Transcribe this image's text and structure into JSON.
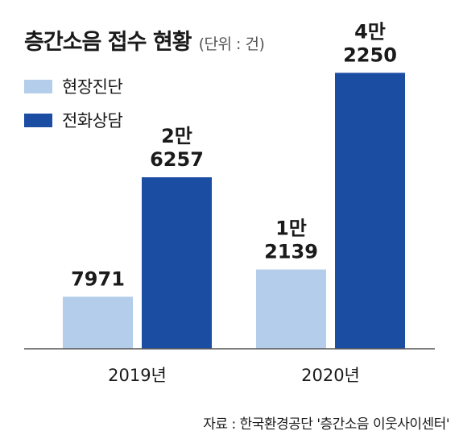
{
  "header": {
    "title": "층간소음 접수 현황",
    "unit": "(단위 : 건)"
  },
  "colors": {
    "site_visit": "#b3cdea",
    "phone_consult": "#1b4da3",
    "axis": "#555555"
  },
  "legend": [
    {
      "label": "현장진단",
      "color": "#b3cdea"
    },
    {
      "label": "전화상담",
      "color": "#1b4da3"
    }
  ],
  "chart_data": {
    "type": "bar",
    "title": "층간소음 접수 현황",
    "unit": "(단위 : 건)",
    "categories": [
      "2019년",
      "2020년"
    ],
    "series": [
      {
        "name": "현장진단",
        "values": [
          7971,
          12139
        ],
        "labels": [
          "7971",
          "1만\n2139"
        ]
      },
      {
        "name": "전화상담",
        "values": [
          26257,
          42250
        ],
        "labels": [
          "2만\n6257",
          "4만\n2250"
        ]
      }
    ],
    "ylim": [
      0,
      46000
    ],
    "grid": false,
    "legend_position": "top-left"
  },
  "source": "자료 : 한국환경공단 '층간소음 이웃사이센터'"
}
